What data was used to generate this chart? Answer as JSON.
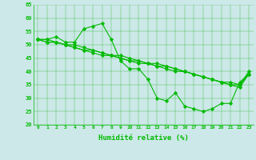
{
  "x": [
    0,
    1,
    2,
    3,
    4,
    5,
    6,
    7,
    8,
    9,
    10,
    11,
    12,
    13,
    14,
    15,
    16,
    17,
    18,
    19,
    20,
    21,
    22,
    23
  ],
  "line1": [
    52,
    52,
    53,
    51,
    51,
    56,
    57,
    58,
    52,
    44,
    41,
    41,
    37,
    30,
    29,
    32,
    27,
    26,
    25,
    26,
    28,
    28,
    36,
    39
  ],
  "line2": [
    52,
    52,
    51,
    50,
    49,
    48,
    47,
    46,
    46,
    45,
    44,
    43,
    43,
    42,
    41,
    40,
    40,
    39,
    38,
    37,
    36,
    35,
    34,
    39
  ],
  "line3": [
    52,
    51,
    51,
    50,
    49,
    48,
    48,
    47,
    46,
    45,
    44,
    44,
    43,
    42,
    42,
    41,
    40,
    39,
    38,
    37,
    36,
    36,
    35,
    39
  ],
  "line4": [
    52,
    51,
    51,
    50,
    50,
    49,
    48,
    47,
    46,
    46,
    45,
    44,
    43,
    43,
    42,
    41,
    40,
    39,
    38,
    37,
    36,
    35,
    35,
    40
  ],
  "ylim": [
    20,
    65
  ],
  "yticks": [
    20,
    25,
    30,
    35,
    40,
    45,
    50,
    55,
    60,
    65
  ],
  "xticks": [
    0,
    1,
    2,
    3,
    4,
    5,
    6,
    7,
    8,
    9,
    10,
    11,
    12,
    13,
    14,
    15,
    16,
    17,
    18,
    19,
    20,
    21,
    22,
    23
  ],
  "xlabel": "Humidité relative (%)",
  "line_color": "#00bb00",
  "bg_color": "#cce8e8",
  "grid_color": "#00aa00",
  "marker": "D",
  "marker_size": 2.2,
  "line_width": 0.8
}
